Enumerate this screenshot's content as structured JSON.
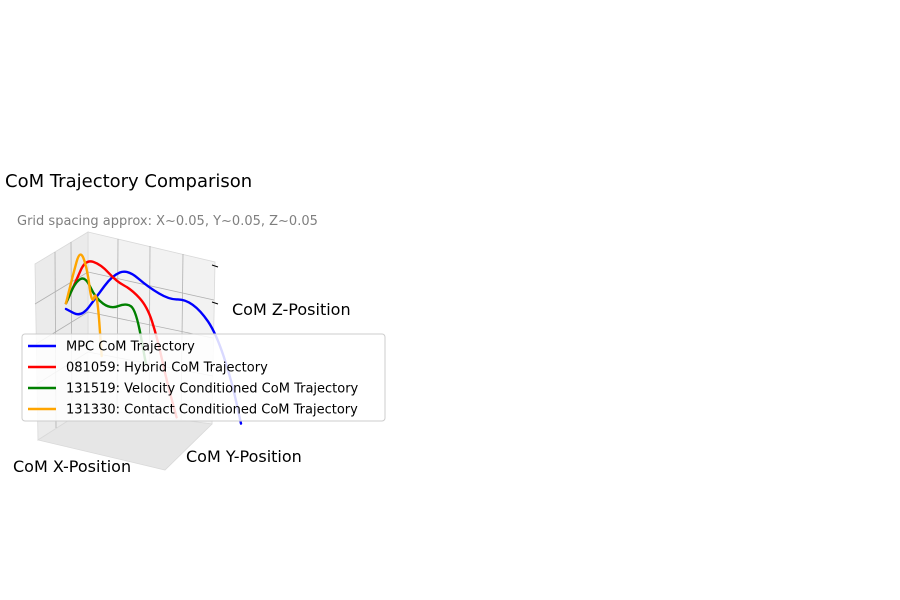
{
  "chart_data": {
    "type": "line",
    "projection": "3d",
    "title": "CoM Trajectory Comparison",
    "subtitle": "Grid spacing approx: X~0.05, Y~0.05, Z~0.05",
    "xlabel": "CoM X-Position",
    "ylabel": "CoM Y-Position",
    "zlabel": "CoM Z-Position",
    "grid": true,
    "legend_position": "lower-left",
    "series": [
      {
        "name": "MPC CoM Trajectory",
        "color": "#0000ff",
        "points": [
          [
            0.0,
            0.0,
            0.1
          ],
          [
            0.01,
            0.02,
            0.08
          ],
          [
            0.02,
            0.04,
            0.16
          ],
          [
            0.03,
            0.06,
            0.24
          ],
          [
            0.04,
            0.08,
            0.27
          ],
          [
            0.05,
            0.11,
            0.22
          ],
          [
            0.06,
            0.14,
            0.19
          ],
          [
            0.07,
            0.16,
            0.2
          ],
          [
            0.08,
            0.18,
            0.17
          ],
          [
            0.09,
            0.2,
            0.1
          ],
          [
            0.1,
            0.22,
            -0.05
          ],
          [
            0.11,
            0.23,
            -0.2
          ]
        ]
      },
      {
        "name": "081059: Hybrid CoM Trajectory",
        "color": "#ff0000",
        "points": [
          [
            0.0,
            0.0,
            0.12
          ],
          [
            0.01,
            0.01,
            0.2
          ],
          [
            0.02,
            0.02,
            0.28
          ],
          [
            0.03,
            0.04,
            0.27
          ],
          [
            0.04,
            0.06,
            0.22
          ],
          [
            0.05,
            0.08,
            0.2
          ],
          [
            0.06,
            0.1,
            0.15
          ],
          [
            0.07,
            0.11,
            0.05
          ],
          [
            0.08,
            0.12,
            -0.1
          ],
          [
            0.09,
            0.13,
            -0.22
          ]
        ]
      },
      {
        "name": "131519: Velocity Conditioned CoM Trajectory",
        "color": "#008000",
        "points": [
          [
            0.0,
            0.0,
            0.12
          ],
          [
            0.01,
            0.01,
            0.2
          ],
          [
            0.02,
            0.02,
            0.22
          ],
          [
            0.03,
            0.03,
            0.15
          ],
          [
            0.04,
            0.05,
            0.12
          ],
          [
            0.05,
            0.07,
            0.15
          ],
          [
            0.06,
            0.08,
            0.13
          ],
          [
            0.07,
            0.09,
            -0.05
          ]
        ]
      },
      {
        "name": "131330: Contact Conditioned CoM Trajectory",
        "color": "#ffa500",
        "points": [
          [
            0.0,
            0.0,
            0.12
          ],
          [
            0.01,
            0.005,
            0.22
          ],
          [
            0.02,
            0.01,
            0.31
          ],
          [
            0.03,
            0.015,
            0.25
          ],
          [
            0.035,
            0.02,
            0.12
          ],
          [
            0.04,
            0.025,
            0.18
          ],
          [
            0.045,
            0.03,
            -0.05
          ]
        ]
      }
    ]
  }
}
